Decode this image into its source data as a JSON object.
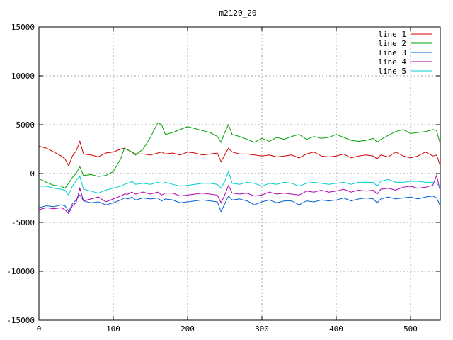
{
  "chart_data": {
    "type": "line",
    "title": "m2120_20",
    "xlabel": "",
    "ylabel": "",
    "xlim": [
      0,
      540
    ],
    "ylim": [
      -15000,
      15000
    ],
    "x_ticks": [
      0,
      100,
      200,
      300,
      400,
      500
    ],
    "y_ticks": [
      -15000,
      -10000,
      -5000,
      0,
      5000,
      10000,
      15000
    ],
    "grid": true,
    "legend_position": "top-right",
    "x": [
      0,
      10,
      20,
      30,
      35,
      40,
      45,
      50,
      55,
      60,
      70,
      80,
      90,
      100,
      110,
      115,
      120,
      125,
      130,
      140,
      150,
      160,
      165,
      170,
      180,
      190,
      200,
      210,
      220,
      230,
      240,
      245,
      250,
      255,
      260,
      270,
      280,
      290,
      300,
      310,
      320,
      330,
      340,
      350,
      360,
      370,
      380,
      390,
      400,
      410,
      420,
      430,
      440,
      450,
      455,
      460,
      470,
      480,
      490,
      500,
      510,
      520,
      530,
      535,
      540
    ],
    "series": [
      {
        "name": "line 1",
        "color": "#d00000",
        "values": [
          2800,
          2600,
          2200,
          1800,
          1500,
          800,
          1800,
          2300,
          3300,
          2000,
          1900,
          1700,
          2100,
          2200,
          2500,
          2600,
          2400,
          2200,
          2000,
          2000,
          1900,
          2100,
          2200,
          2000,
          2100,
          1900,
          2200,
          2100,
          1900,
          2000,
          2100,
          1200,
          1900,
          2600,
          2200,
          2000,
          2000,
          1900,
          1800,
          1900,
          1700,
          1800,
          1900,
          1600,
          2000,
          2200,
          1800,
          1700,
          1800,
          2000,
          1600,
          1800,
          1900,
          1800,
          1500,
          1900,
          1700,
          2200,
          1800,
          1600,
          1800,
          2200,
          1800,
          1900,
          800
        ]
      },
      {
        "name": "line 2",
        "color": "#00a000",
        "values": [
          -500,
          -900,
          -1200,
          -1300,
          -1500,
          -1000,
          -400,
          0,
          700,
          -200,
          -100,
          -300,
          -200,
          200,
          1500,
          2600,
          2400,
          2200,
          1900,
          2500,
          3700,
          5200,
          5000,
          4000,
          4200,
          4500,
          4800,
          4600,
          4400,
          4200,
          3800,
          3200,
          4200,
          5000,
          4000,
          3800,
          3500,
          3200,
          3600,
          3300,
          3700,
          3500,
          3800,
          4000,
          3500,
          3800,
          3600,
          3700,
          4000,
          3700,
          3400,
          3300,
          3400,
          3600,
          3200,
          3500,
          3900,
          4300,
          4500,
          4100,
          4200,
          4300,
          4500,
          4400,
          3000
        ]
      },
      {
        "name": "line 3",
        "color": "#0060d0",
        "values": [
          -3500,
          -3300,
          -3400,
          -3200,
          -3300,
          -3900,
          -3100,
          -2700,
          -2200,
          -2800,
          -3000,
          -2900,
          -3200,
          -3000,
          -2700,
          -2500,
          -2600,
          -2400,
          -2700,
          -2500,
          -2600,
          -2500,
          -2800,
          -2600,
          -2700,
          -3000,
          -2900,
          -2800,
          -2700,
          -2800,
          -2900,
          -3900,
          -3100,
          -2300,
          -2700,
          -2600,
          -2800,
          -3200,
          -2900,
          -2700,
          -3000,
          -2800,
          -2800,
          -3200,
          -2800,
          -2900,
          -2700,
          -2800,
          -2700,
          -2500,
          -2800,
          -2600,
          -2500,
          -2600,
          -3000,
          -2600,
          -2400,
          -2600,
          -2500,
          -2400,
          -2600,
          -2400,
          -2300,
          -2500,
          -3300
        ]
      },
      {
        "name": "line 4",
        "color": "#b000b0",
        "values": [
          -3700,
          -3500,
          -3600,
          -3500,
          -3700,
          -4100,
          -3300,
          -3000,
          -1500,
          -2800,
          -2600,
          -2400,
          -2900,
          -2600,
          -2300,
          -2100,
          -2100,
          -1900,
          -2100,
          -1900,
          -2100,
          -1900,
          -2200,
          -2000,
          -2000,
          -2300,
          -2200,
          -2100,
          -2000,
          -2100,
          -2200,
          -3000,
          -2200,
          -1200,
          -2000,
          -2100,
          -2000,
          -2300,
          -2200,
          -1900,
          -2100,
          -2000,
          -2100,
          -2200,
          -1800,
          -1900,
          -1700,
          -1900,
          -1800,
          -1600,
          -1900,
          -1700,
          -1800,
          -1700,
          -2100,
          -1600,
          -1500,
          -1700,
          -1400,
          -1300,
          -1500,
          -1400,
          -1200,
          -200,
          -1800
        ]
      },
      {
        "name": "line 5",
        "color": "#00d0d0",
        "values": [
          -1300,
          -1300,
          -1500,
          -1600,
          -1700,
          -2200,
          -1300,
          -700,
          -300,
          -1600,
          -1800,
          -2000,
          -1700,
          -1500,
          -1300,
          -1100,
          -1000,
          -800,
          -1100,
          -1000,
          -1100,
          -900,
          -1000,
          -900,
          -1100,
          -1300,
          -1200,
          -1100,
          -1000,
          -1000,
          -1100,
          -1500,
          -800,
          200,
          -1000,
          -1100,
          -900,
          -1000,
          -1300,
          -1000,
          -1100,
          -900,
          -1000,
          -1300,
          -1000,
          -900,
          -1000,
          -1100,
          -1000,
          -900,
          -1100,
          -900,
          -900,
          -900,
          -1300,
          -800,
          -600,
          -900,
          -900,
          -800,
          -800,
          -900,
          -900,
          -1000,
          -1400
        ]
      }
    ]
  }
}
